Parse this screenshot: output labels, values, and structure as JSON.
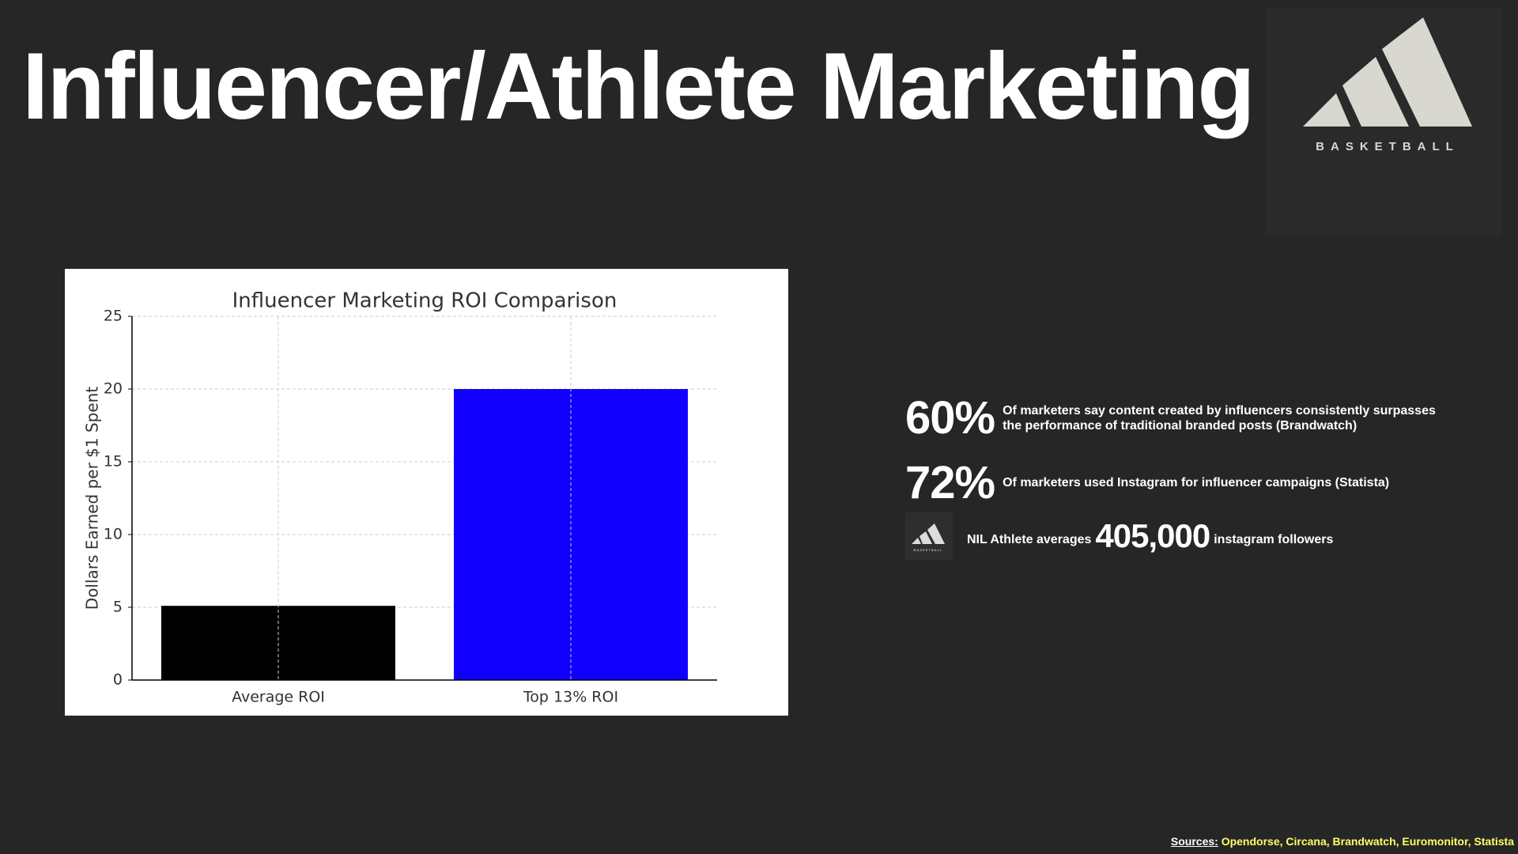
{
  "title": "Influencer/Athlete Marketing",
  "logo": {
    "text": "BASKETBALL"
  },
  "chart_data": {
    "type": "bar",
    "title": "Influencer Marketing ROI Comparison",
    "y_label": "Dollars Earned per $1 Spent",
    "categories": [
      "Average ROI",
      "Top 13% ROI"
    ],
    "values": [
      5.1,
      20
    ],
    "colors": [
      "#000000",
      "#1200ff"
    ],
    "ylim": [
      0,
      25
    ],
    "yticks": [
      0,
      5,
      10,
      15,
      20,
      25
    ],
    "grid": true
  },
  "stats": [
    {
      "value": "60%",
      "text": "Of marketers say content created by influencers consistently surpasses the performance of traditional branded posts (Brandwatch)"
    },
    {
      "value": "72%",
      "text": "Of marketers used Instagram for influencer campaigns (Statista)"
    }
  ],
  "nil": {
    "prefix": "NIL Athlete averages",
    "value": "405,000",
    "suffix": "instagram followers"
  },
  "sources": {
    "label": "Sources:",
    "list": "Opendorse, Circana, Brandwatch, Euromonitor, Statista"
  }
}
